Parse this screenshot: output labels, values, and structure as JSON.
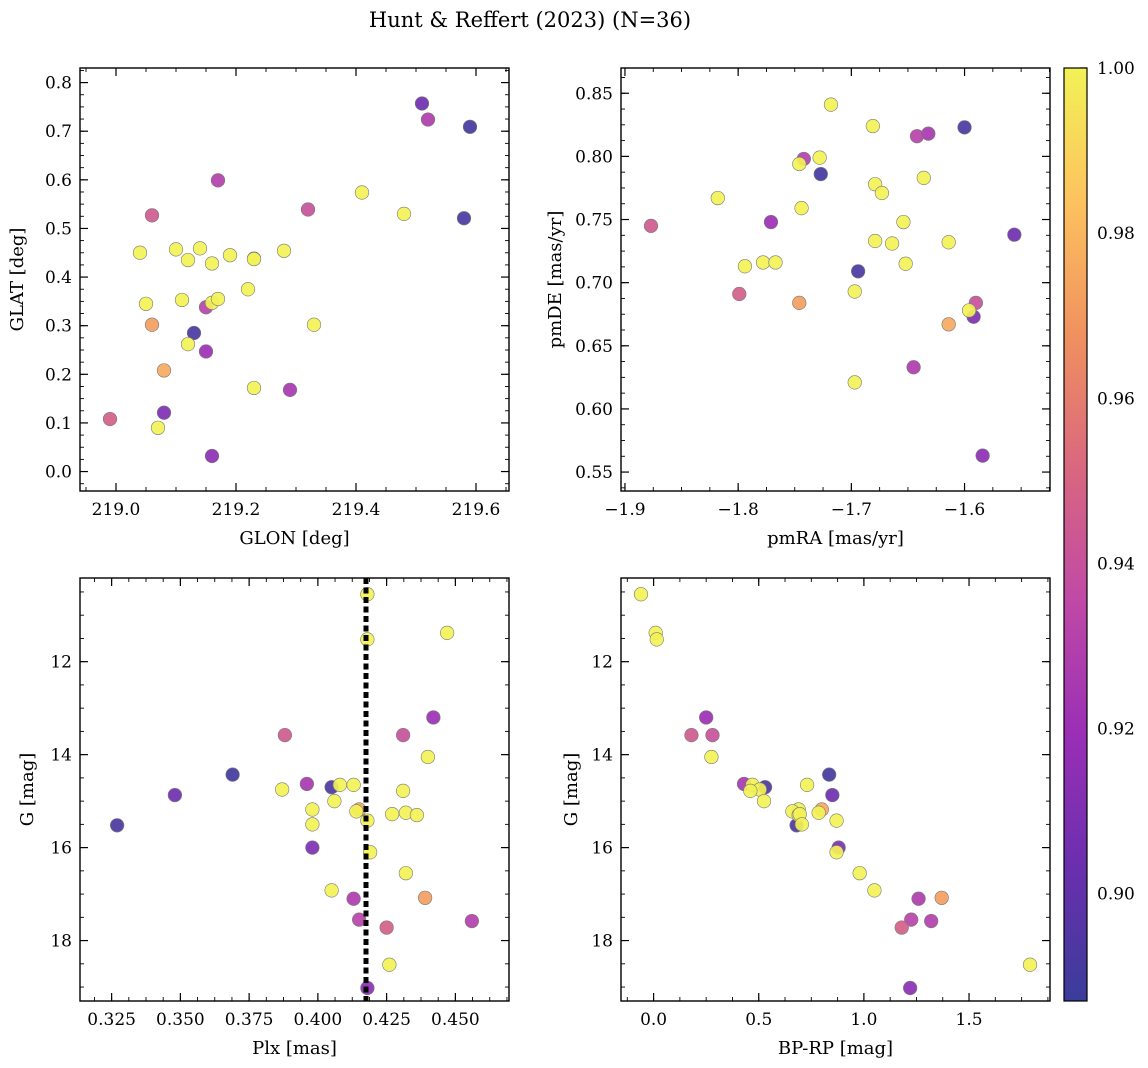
{
  "chart_data": {
    "type": "scatter",
    "title": "Hunt & Reffert (2023) (N=36)",
    "colorbar": {
      "range": [
        0.887,
        1.0
      ],
      "ticks": [
        0.9,
        0.92,
        0.94,
        0.96,
        0.98,
        1.0
      ],
      "tick_labels": [
        "0.90",
        "0.92",
        "0.94",
        "0.96",
        "0.98",
        "1.00"
      ],
      "colormap": "plasma"
    },
    "colormap_stops": [
      "#3a3d9a",
      "#6a2fae",
      "#9a2fb6",
      "#bf49a6",
      "#d9677f",
      "#f0915f",
      "#fdc25f",
      "#f2f256"
    ],
    "stars": [
      {
        "glon": 219.59,
        "glat": 0.709,
        "pmra": -1.727,
        "pmde": 0.786,
        "plx": 0.369,
        "g": 14.43,
        "bprp": 0.835,
        "prob": 0.89
      },
      {
        "glon": 219.58,
        "glat": 0.521,
        "pmra": -1.6,
        "pmde": 0.823,
        "plx": 0.405,
        "g": 14.7,
        "bprp": 0.53,
        "prob": 0.893
      },
      {
        "glon": 219.13,
        "glat": 0.285,
        "pmra": -1.694,
        "pmde": 0.709,
        "plx": 0.327,
        "g": 15.52,
        "bprp": 0.68,
        "prob": 0.893
      },
      {
        "glon": 219.51,
        "glat": 0.757,
        "pmra": -1.556,
        "pmde": 0.738,
        "plx": 0.348,
        "g": 14.87,
        "bprp": 0.85,
        "prob": 0.905
      },
      {
        "glon": 219.08,
        "glat": 0.121,
        "pmra": -1.592,
        "pmde": 0.673,
        "plx": 0.398,
        "g": 16.0,
        "bprp": 0.88,
        "prob": 0.91
      },
      {
        "glon": 219.16,
        "glat": 0.032,
        "pmra": -1.584,
        "pmde": 0.563,
        "plx": 0.418,
        "g": 19.02,
        "bprp": 1.22,
        "prob": 0.915
      },
      {
        "glon": 219.15,
        "glat": 0.247,
        "pmra": -1.771,
        "pmde": 0.748,
        "plx": 0.442,
        "g": 13.2,
        "bprp": 0.25,
        "prob": 0.92
      },
      {
        "glon": 219.29,
        "glat": 0.168,
        "pmra": -1.632,
        "pmde": 0.818,
        "plx": 0.396,
        "g": 14.63,
        "bprp": 0.43,
        "prob": 0.925
      },
      {
        "glon": 219.52,
        "glat": 0.724,
        "pmra": -1.645,
        "pmde": 0.633,
        "plx": 0.413,
        "g": 17.1,
        "bprp": 1.26,
        "prob": 0.928
      },
      {
        "glon": 219.17,
        "glat": 0.599,
        "pmra": -1.742,
        "pmde": 0.798,
        "plx": 0.456,
        "g": 17.58,
        "bprp": 1.32,
        "prob": 0.93
      },
      {
        "glon": 219.15,
        "glat": 0.338,
        "pmra": -1.642,
        "pmde": 0.816,
        "plx": 0.415,
        "g": 17.55,
        "bprp": 1.225,
        "prob": 0.932
      },
      {
        "glon": 219.32,
        "glat": 0.539,
        "pmra": -1.59,
        "pmde": 0.684,
        "plx": 0.431,
        "g": 13.58,
        "bprp": 0.28,
        "prob": 0.94
      },
      {
        "glon": 219.06,
        "glat": 0.527,
        "pmra": -1.877,
        "pmde": 0.745,
        "plx": 0.388,
        "g": 13.58,
        "bprp": 0.18,
        "prob": 0.945
      },
      {
        "glon": 218.99,
        "glat": 0.108,
        "pmra": -1.799,
        "pmde": 0.691,
        "plx": 0.425,
        "g": 17.72,
        "bprp": 1.18,
        "prob": 0.948
      },
      {
        "glon": 219.06,
        "glat": 0.302,
        "pmra": -1.746,
        "pmde": 0.684,
        "plx": 0.439,
        "g": 17.08,
        "bprp": 1.37,
        "prob": 0.972
      },
      {
        "glon": 219.08,
        "glat": 0.208,
        "pmra": -1.614,
        "pmde": 0.667,
        "plx": 0.415,
        "g": 15.18,
        "bprp": 0.8,
        "prob": 0.976
      },
      {
        "glon": 219.04,
        "glat": 0.45,
        "pmra": -1.818,
        "pmde": 0.767,
        "plx": 0.418,
        "g": 10.55,
        "bprp": -0.06,
        "prob": 1.0
      },
      {
        "glon": 219.05,
        "glat": 0.345,
        "pmra": -1.794,
        "pmde": 0.713,
        "plx": 0.447,
        "g": 11.38,
        "bprp": 0.01,
        "prob": 1.0
      },
      {
        "glon": 219.07,
        "glat": 0.09,
        "pmra": -1.778,
        "pmde": 0.716,
        "plx": 0.418,
        "g": 11.52,
        "bprp": 0.015,
        "prob": 1.0
      },
      {
        "glon": 219.1,
        "glat": 0.457,
        "pmra": -1.767,
        "pmde": 0.716,
        "plx": 0.44,
        "g": 14.05,
        "bprp": 0.275,
        "prob": 1.0
      },
      {
        "glon": 219.11,
        "glat": 0.353,
        "pmra": -1.746,
        "pmde": 0.794,
        "plx": 0.408,
        "g": 14.65,
        "bprp": 0.73,
        "prob": 1.0
      },
      {
        "glon": 219.12,
        "glat": 0.435,
        "pmra": -1.744,
        "pmde": 0.759,
        "plx": 0.413,
        "g": 14.65,
        "bprp": 0.47,
        "prob": 1.0
      },
      {
        "glon": 219.12,
        "glat": 0.262,
        "pmra": -1.728,
        "pmde": 0.799,
        "plx": 0.387,
        "g": 14.75,
        "bprp": 0.505,
        "prob": 1.0
      },
      {
        "glon": 219.14,
        "glat": 0.459,
        "pmra": -1.718,
        "pmde": 0.841,
        "plx": 0.431,
        "g": 14.78,
        "bprp": 0.46,
        "prob": 1.0
      },
      {
        "glon": 219.16,
        "glat": 0.428,
        "pmra": -1.681,
        "pmde": 0.824,
        "plx": 0.406,
        "g": 15.0,
        "bprp": 0.525,
        "prob": 1.0
      },
      {
        "glon": 219.16,
        "glat": 0.347,
        "pmra": -1.679,
        "pmde": 0.778,
        "plx": 0.398,
        "g": 15.18,
        "bprp": 0.69,
        "prob": 1.0
      },
      {
        "glon": 219.17,
        "glat": 0.355,
        "pmra": -1.673,
        "pmde": 0.771,
        "plx": 0.414,
        "g": 15.22,
        "bprp": 0.66,
        "prob": 1.0
      },
      {
        "glon": 219.19,
        "glat": 0.445,
        "pmra": -1.679,
        "pmde": 0.733,
        "plx": 0.432,
        "g": 15.25,
        "bprp": 0.785,
        "prob": 1.0
      },
      {
        "glon": 219.22,
        "glat": 0.375,
        "pmra": -1.664,
        "pmde": 0.731,
        "plx": 0.436,
        "g": 15.3,
        "bprp": 0.69,
        "prob": 1.0
      },
      {
        "glon": 219.23,
        "glat": 0.438,
        "pmra": -1.654,
        "pmde": 0.748,
        "plx": 0.418,
        "g": 15.42,
        "bprp": 0.87,
        "prob": 1.0
      },
      {
        "glon": 219.23,
        "glat": 0.437,
        "pmra": -1.652,
        "pmde": 0.715,
        "plx": 0.427,
        "g": 15.28,
        "bprp": 0.695,
        "prob": 1.0
      },
      {
        "glon": 219.23,
        "glat": 0.172,
        "pmra": -1.636,
        "pmde": 0.783,
        "plx": 0.398,
        "g": 15.5,
        "bprp": 0.705,
        "prob": 1.0
      },
      {
        "glon": 219.28,
        "glat": 0.454,
        "pmra": -1.614,
        "pmde": 0.732,
        "plx": 0.419,
        "g": 16.1,
        "bprp": 0.87,
        "prob": 1.0
      },
      {
        "glon": 219.33,
        "glat": 0.302,
        "pmra": -1.596,
        "pmde": 0.678,
        "plx": 0.432,
        "g": 16.55,
        "bprp": 0.98,
        "prob": 1.0
      },
      {
        "glon": 219.41,
        "glat": 0.574,
        "pmra": -1.697,
        "pmde": 0.693,
        "plx": 0.405,
        "g": 16.92,
        "bprp": 1.05,
        "prob": 1.0
      },
      {
        "glon": 219.48,
        "glat": 0.53,
        "pmra": -1.697,
        "pmde": 0.621,
        "plx": 0.426,
        "g": 18.52,
        "bprp": 1.79,
        "prob": 1.0
      }
    ],
    "panels": [
      {
        "id": "glon-glat",
        "x_field": "glon",
        "y_field": "glat",
        "xlabel": "GLON [deg]",
        "ylabel": "GLAT [deg]",
        "xlim": [
          218.94,
          219.655
        ],
        "ylim": [
          -0.04,
          0.83
        ],
        "y_inverted": false,
        "x_ticks": [
          219.0,
          219.2,
          219.4,
          219.6
        ],
        "x_tick_labels": [
          "219.0",
          "219.2",
          "219.4",
          "219.6"
        ],
        "x_minor_step": 0.05,
        "y_ticks": [
          0.0,
          0.1,
          0.2,
          0.3,
          0.4,
          0.5,
          0.6,
          0.7,
          0.8
        ],
        "y_tick_labels": [
          "0.0",
          "0.1",
          "0.2",
          "0.3",
          "0.4",
          "0.5",
          "0.6",
          "0.7",
          "0.8"
        ],
        "y_minor_step": 0.025
      },
      {
        "id": "pmra-pmde",
        "x_field": "pmra",
        "y_field": "pmde",
        "xlabel": "pmRA [mas/yr]",
        "ylabel": "pmDE [mas/yr]",
        "xlim": [
          -1.9035,
          -1.5245
        ],
        "ylim": [
          0.535,
          0.87
        ],
        "y_inverted": false,
        "x_ticks": [
          -1.9,
          -1.8,
          -1.7,
          -1.6
        ],
        "x_tick_labels": [
          "−1.9",
          "−1.8",
          "−1.7",
          "−1.6"
        ],
        "x_minor_step": 0.025,
        "y_ticks": [
          0.55,
          0.6,
          0.65,
          0.7,
          0.75,
          0.8,
          0.85
        ],
        "y_tick_labels": [
          "0.55",
          "0.60",
          "0.65",
          "0.70",
          "0.75",
          "0.80",
          "0.85"
        ],
        "y_minor_step": 0.0125
      },
      {
        "id": "plx-g",
        "x_field": "plx",
        "y_field": "g",
        "xlabel": "Plx [mas]",
        "ylabel": "G [mag]",
        "xlim": [
          0.3135,
          0.4695
        ],
        "ylim": [
          10.2,
          19.3
        ],
        "y_inverted": true,
        "x_ticks": [
          0.325,
          0.35,
          0.375,
          0.4,
          0.425,
          0.45
        ],
        "x_tick_labels": [
          "0.325",
          "0.350",
          "0.375",
          "0.400",
          "0.425",
          "0.450"
        ],
        "x_minor_step": 0.00625,
        "y_ticks": [
          12,
          14,
          16,
          18
        ],
        "y_tick_labels": [
          "12",
          "14",
          "16",
          "18"
        ],
        "y_minor_step": 0.5,
        "vline": 0.4175
      },
      {
        "id": "bprp-g",
        "x_field": "bprp",
        "y_field": "g",
        "xlabel": "BP-RP [mag]",
        "ylabel": "G [mag]",
        "xlim": [
          -0.155,
          1.885
        ],
        "ylim": [
          10.2,
          19.3
        ],
        "y_inverted": true,
        "x_ticks": [
          0.0,
          0.5,
          1.0,
          1.5
        ],
        "x_tick_labels": [
          "0.0",
          "0.5",
          "1.0",
          "1.5"
        ],
        "x_minor_step": 0.125,
        "y_ticks": [
          12,
          14,
          16,
          18
        ],
        "y_tick_labels": [
          "12",
          "14",
          "16",
          "18"
        ],
        "y_minor_step": 0.5
      }
    ]
  }
}
